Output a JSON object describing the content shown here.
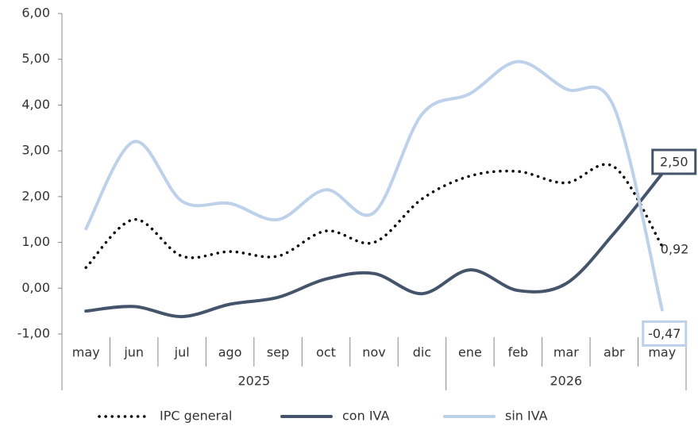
{
  "chart_data": {
    "type": "line",
    "categories": [
      "may",
      "jun",
      "jul",
      "ago",
      "sep",
      "oct",
      "nov",
      "dic",
      "ene",
      "feb",
      "mar",
      "abr",
      "may"
    ],
    "category_groups": [
      {
        "label": "2025",
        "count": 8
      },
      {
        "label": "2026",
        "count": 5
      }
    ],
    "series": [
      {
        "name": "IPC general",
        "color": "#000000",
        "style": "dotted",
        "values": [
          0.45,
          1.5,
          0.7,
          0.8,
          0.7,
          1.25,
          1.0,
          1.95,
          2.45,
          2.55,
          2.3,
          2.65,
          0.92
        ],
        "value_labels": [
          null,
          null,
          null,
          null,
          null,
          null,
          null,
          null,
          null,
          null,
          null,
          null,
          "0,92"
        ]
      },
      {
        "name": "con IVA",
        "color": "#44546a",
        "style": "solid",
        "values": [
          -0.5,
          -0.4,
          -0.62,
          -0.35,
          -0.2,
          0.2,
          0.32,
          -0.12,
          0.4,
          -0.05,
          0.1,
          1.2,
          2.5
        ],
        "value_labels": [
          null,
          null,
          null,
          null,
          null,
          null,
          null,
          null,
          null,
          null,
          null,
          null,
          "2,50"
        ]
      },
      {
        "name": "sin IVA",
        "color": "#bdd1ea",
        "style": "solid",
        "values": [
          1.3,
          3.2,
          1.9,
          1.85,
          1.5,
          2.15,
          1.65,
          3.8,
          4.25,
          4.95,
          4.35,
          3.95,
          -0.47
        ],
        "value_labels": [
          null,
          null,
          null,
          null,
          null,
          null,
          null,
          null,
          null,
          null,
          null,
          null,
          "-0,47"
        ]
      }
    ],
    "ylim": [
      -1,
      6
    ],
    "yticks": [
      {
        "value": -1,
        "label": "-1,00"
      },
      {
        "value": 0,
        "label": "0,00"
      },
      {
        "value": 1,
        "label": "1,00"
      },
      {
        "value": 2,
        "label": "2,00"
      },
      {
        "value": 3,
        "label": "3,00"
      },
      {
        "value": 4,
        "label": "4,00"
      },
      {
        "value": 5,
        "label": "5,00"
      },
      {
        "value": 6,
        "label": "6,00"
      }
    ],
    "legend": "bottom"
  }
}
